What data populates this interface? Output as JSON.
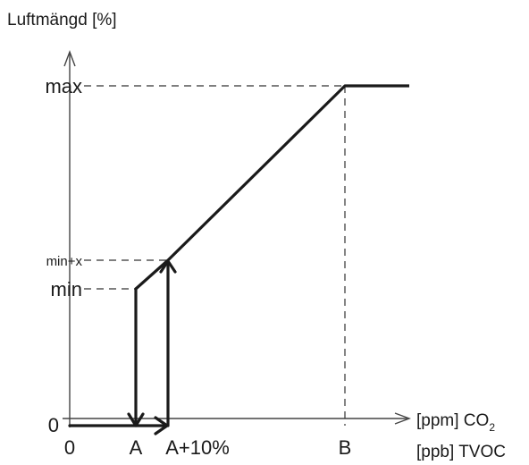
{
  "y_axis_title": "Luftmängd [%]",
  "y_levels": {
    "max": "max",
    "min_plus_x": "min+x",
    "min": "min",
    "zero": "0"
  },
  "x_ticks": {
    "zero": "0",
    "a": "A",
    "a_plus_10": "A+10%",
    "b": "B"
  },
  "x_axis_title": {
    "line1_prefix": "[ppm] CO",
    "line1_subscript": "2",
    "line2": "[ppb] TVOC"
  },
  "colors": {
    "curve": "#1a1a1a",
    "guides": "#333333",
    "axes": "#444444"
  }
}
